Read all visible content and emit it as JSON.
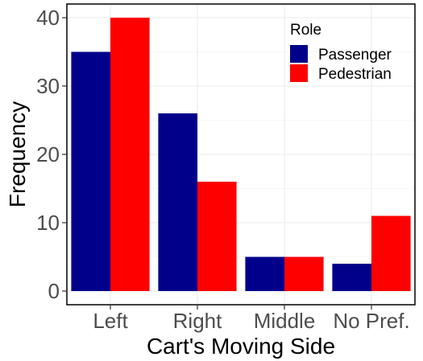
{
  "chart_data": {
    "type": "bar",
    "xlabel": "Cart's Moving Side",
    "ylabel": "Frequency",
    "categories": [
      "Left",
      "Right",
      "Middle",
      "No Pref."
    ],
    "series": [
      {
        "name": "Passenger",
        "values": [
          35,
          26,
          5,
          4
        ],
        "color": "#00008B"
      },
      {
        "name": "Pedestrian",
        "values": [
          40,
          16,
          5,
          11
        ],
        "color": "#FF0000"
      }
    ],
    "ylim": [
      -2,
      42
    ],
    "yticks": [
      0,
      10,
      20,
      30,
      40
    ],
    "grid": true,
    "legend": {
      "title": "Role",
      "placement": "top-right"
    }
  }
}
